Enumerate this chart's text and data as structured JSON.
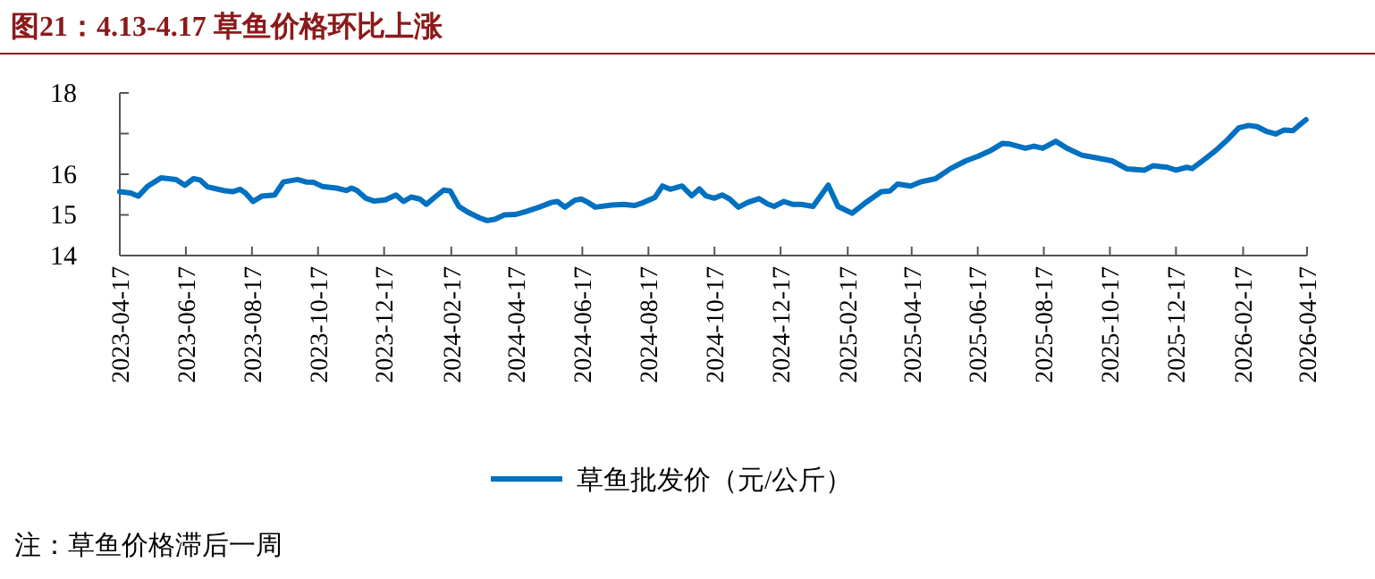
{
  "chart_data": {
    "type": "line",
    "title": "图21：4.13-4.17 草鱼价格环比上涨",
    "annotations": [
      "注：草鱼价格滞后一周"
    ],
    "xlim": [
      "2023-04-17",
      "2026-04-17"
    ],
    "xticks": [
      {
        "value": "2023-04-17",
        "label": "2023-04-17"
      },
      {
        "value": "2023-06-17",
        "label": "2023-06-17"
      },
      {
        "value": "2023-08-17",
        "label": "2023-08-17"
      },
      {
        "value": "2023-10-17",
        "label": "2023-10-17"
      },
      {
        "value": "2023-12-17",
        "label": "2023-12-17"
      },
      {
        "value": "2024-02-17",
        "label": "2024-02-17"
      },
      {
        "value": "2024-04-17",
        "label": "2024-04-17"
      },
      {
        "value": "2024-06-17",
        "label": "2024-06-17"
      },
      {
        "value": "2024-08-17",
        "label": "2024-08-17"
      },
      {
        "value": "2024-10-17",
        "label": "2024-10-17"
      },
      {
        "value": "2024-12-17",
        "label": "2024-12-17"
      },
      {
        "value": "2025-02-17",
        "label": "2025-02-17"
      },
      {
        "value": "2025-04-17",
        "label": "2025-04-17"
      },
      {
        "value": "2025-06-17",
        "label": "2025-06-17"
      },
      {
        "value": "2025-08-17",
        "label": "2025-08-17"
      },
      {
        "value": "2025-10-17",
        "label": "2025-10-17"
      },
      {
        "value": "2025-12-17",
        "label": "2025-12-17"
      },
      {
        "value": "2026-02-17",
        "label": "2026-02-17"
      },
      {
        "value": "2026-04-17",
        "label": "2026-04-17"
      }
    ],
    "ylim": [
      14,
      18
    ],
    "yticks": [
      14,
      15,
      16,
      {
        "value": 17,
        "label": null
      },
      18
    ],
    "grid": false,
    "legend": "bottom",
    "marker": "none",
    "line_style": "solid",
    "x": [
      "2023-04-17",
      "2023-04-27",
      "2023-05-04",
      "2023-05-13",
      "2023-05-25",
      "2023-06-08",
      "2023-06-16",
      "2023-06-24",
      "2023-06-30",
      "2023-07-07",
      "2023-07-22",
      "2023-07-30",
      "2023-08-06",
      "2023-08-11",
      "2023-08-18",
      "2023-08-26",
      "2023-09-07",
      "2023-09-15",
      "2023-09-28",
      "2023-10-06",
      "2023-10-13",
      "2023-10-21",
      "2023-11-03",
      "2023-11-12",
      "2023-11-17",
      "2023-11-22",
      "2023-11-30",
      "2023-12-08",
      "2023-12-18",
      "2023-12-28",
      "2024-01-04",
      "2024-01-11",
      "2024-01-19",
      "2024-01-25",
      "2024-02-02",
      "2024-02-10",
      "2024-02-16",
      "2024-02-24",
      "2024-03-03",
      "2024-03-14",
      "2024-03-21",
      "2024-03-28",
      "2024-04-06",
      "2024-04-16",
      "2024-04-27",
      "2024-05-08",
      "2024-05-20",
      "2024-05-25",
      "2024-06-01",
      "2024-06-10",
      "2024-06-16",
      "2024-06-22",
      "2024-06-29",
      "2024-07-14",
      "2024-07-25",
      "2024-08-04",
      "2024-08-12",
      "2024-08-23",
      "2024-08-30",
      "2024-09-06",
      "2024-09-17",
      "2024-09-26",
      "2024-10-03",
      "2024-10-09",
      "2024-10-17",
      "2024-10-24",
      "2024-10-31",
      "2024-11-08",
      "2024-11-17",
      "2024-11-27",
      "2024-12-05",
      "2024-12-11",
      "2024-12-20",
      "2024-12-28",
      "2025-01-05",
      "2025-01-16",
      "2025-01-30",
      "2025-02-08",
      "2025-02-21",
      "2025-03-07",
      "2025-03-20",
      "2025-03-28",
      "2025-04-04",
      "2025-04-16",
      "2025-04-25",
      "2025-05-09",
      "2025-05-23",
      "2025-06-06",
      "2025-06-17",
      "2025-06-28",
      "2025-07-10",
      "2025-07-17",
      "2025-07-31",
      "2025-08-08",
      "2025-08-16",
      "2025-08-28",
      "2025-09-08",
      "2025-09-21",
      "2025-10-05",
      "2025-10-19",
      "2025-11-02",
      "2025-11-18",
      "2025-11-26",
      "2025-12-09",
      "2025-12-17",
      "2025-12-27",
      "2026-01-01",
      "2026-01-12",
      "2026-01-23",
      "2026-02-03",
      "2026-02-13",
      "2026-02-22",
      "2026-03-02",
      "2026-03-10",
      "2026-03-19",
      "2026-03-27",
      "2026-04-04",
      "2026-04-09",
      "2026-04-16"
    ],
    "series": [
      {
        "name": "草鱼批发价（元/公斤）",
        "color": "#0070c0",
        "values": [
          15.57,
          15.54,
          15.46,
          15.71,
          15.91,
          15.87,
          15.73,
          15.89,
          15.86,
          15.69,
          15.6,
          15.57,
          15.63,
          15.54,
          15.33,
          15.46,
          15.49,
          15.81,
          15.87,
          15.81,
          15.8,
          15.7,
          15.66,
          15.6,
          15.66,
          15.6,
          15.41,
          15.34,
          15.37,
          15.49,
          15.33,
          15.44,
          15.39,
          15.26,
          15.44,
          15.61,
          15.59,
          15.21,
          15.07,
          14.93,
          14.86,
          14.89,
          15.0,
          15.01,
          15.09,
          15.19,
          15.31,
          15.33,
          15.19,
          15.36,
          15.39,
          15.31,
          15.19,
          15.24,
          15.26,
          15.23,
          15.3,
          15.43,
          15.71,
          15.63,
          15.71,
          15.47,
          15.64,
          15.47,
          15.41,
          15.49,
          15.39,
          15.19,
          15.31,
          15.4,
          15.27,
          15.21,
          15.33,
          15.26,
          15.26,
          15.21,
          15.73,
          15.21,
          15.04,
          15.33,
          15.57,
          15.59,
          15.76,
          15.71,
          15.81,
          15.89,
          16.14,
          16.33,
          16.44,
          16.57,
          16.76,
          16.74,
          16.64,
          16.69,
          16.64,
          16.81,
          16.63,
          16.47,
          16.4,
          16.33,
          16.13,
          16.1,
          16.21,
          16.17,
          16.1,
          16.17,
          16.14,
          16.36,
          16.59,
          16.86,
          17.14,
          17.2,
          17.17,
          17.06,
          16.99,
          17.09,
          17.07,
          17.19,
          17.34
        ]
      }
    ]
  }
}
